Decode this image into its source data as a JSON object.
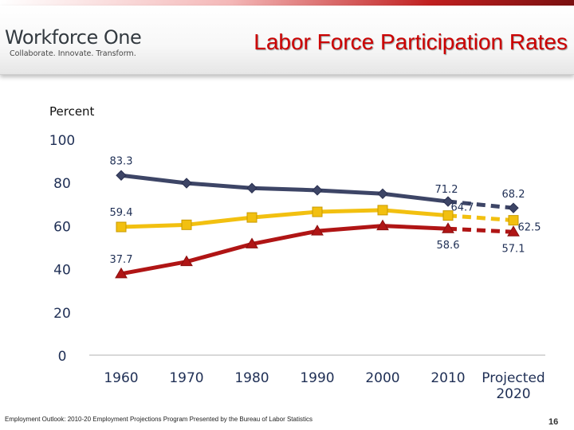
{
  "header": {
    "logo_name": "Workforce One",
    "logo_tagline": "Collaborate. Innovate. Transform.",
    "title": "Labor Force Participation Rates"
  },
  "footer": {
    "source": "Employment Outlook: 2010-20 Employment Projections Program Presented by the Bureau of Labor Statistics",
    "page": "16"
  },
  "chart_data": {
    "type": "line",
    "ylabel": "Percent",
    "ylim": [
      0,
      100
    ],
    "yticks": [
      0,
      20,
      40,
      60,
      80,
      100
    ],
    "categories": [
      "1960",
      "1970",
      "1980",
      "1990",
      "2000",
      "2010",
      "Projected 2020"
    ],
    "grid": false,
    "legend": "none",
    "projected_segment": "dashed from 2010 to Projected 2020",
    "series": [
      {
        "color": "#3d4566",
        "marker": "diamond",
        "values": [
          83.3,
          79.7,
          77.4,
          76.4,
          74.8,
          71.2,
          68.2
        ],
        "labels": {
          "0": "83.3",
          "5": "71.2",
          "6": "68.2"
        }
      },
      {
        "color": "#f2c010",
        "marker": "square",
        "values": [
          59.4,
          60.4,
          63.8,
          66.4,
          67.2,
          64.7,
          62.5
        ],
        "labels": {
          "0": "59.4",
          "5": "64.7",
          "6": "62.5"
        }
      },
      {
        "color": "#b01515",
        "marker": "triangle",
        "values": [
          37.7,
          43.3,
          51.5,
          57.5,
          59.9,
          58.6,
          57.1
        ],
        "labels": {
          "0": "37.7",
          "5": "58.6",
          "6": "57.1"
        }
      }
    ]
  }
}
